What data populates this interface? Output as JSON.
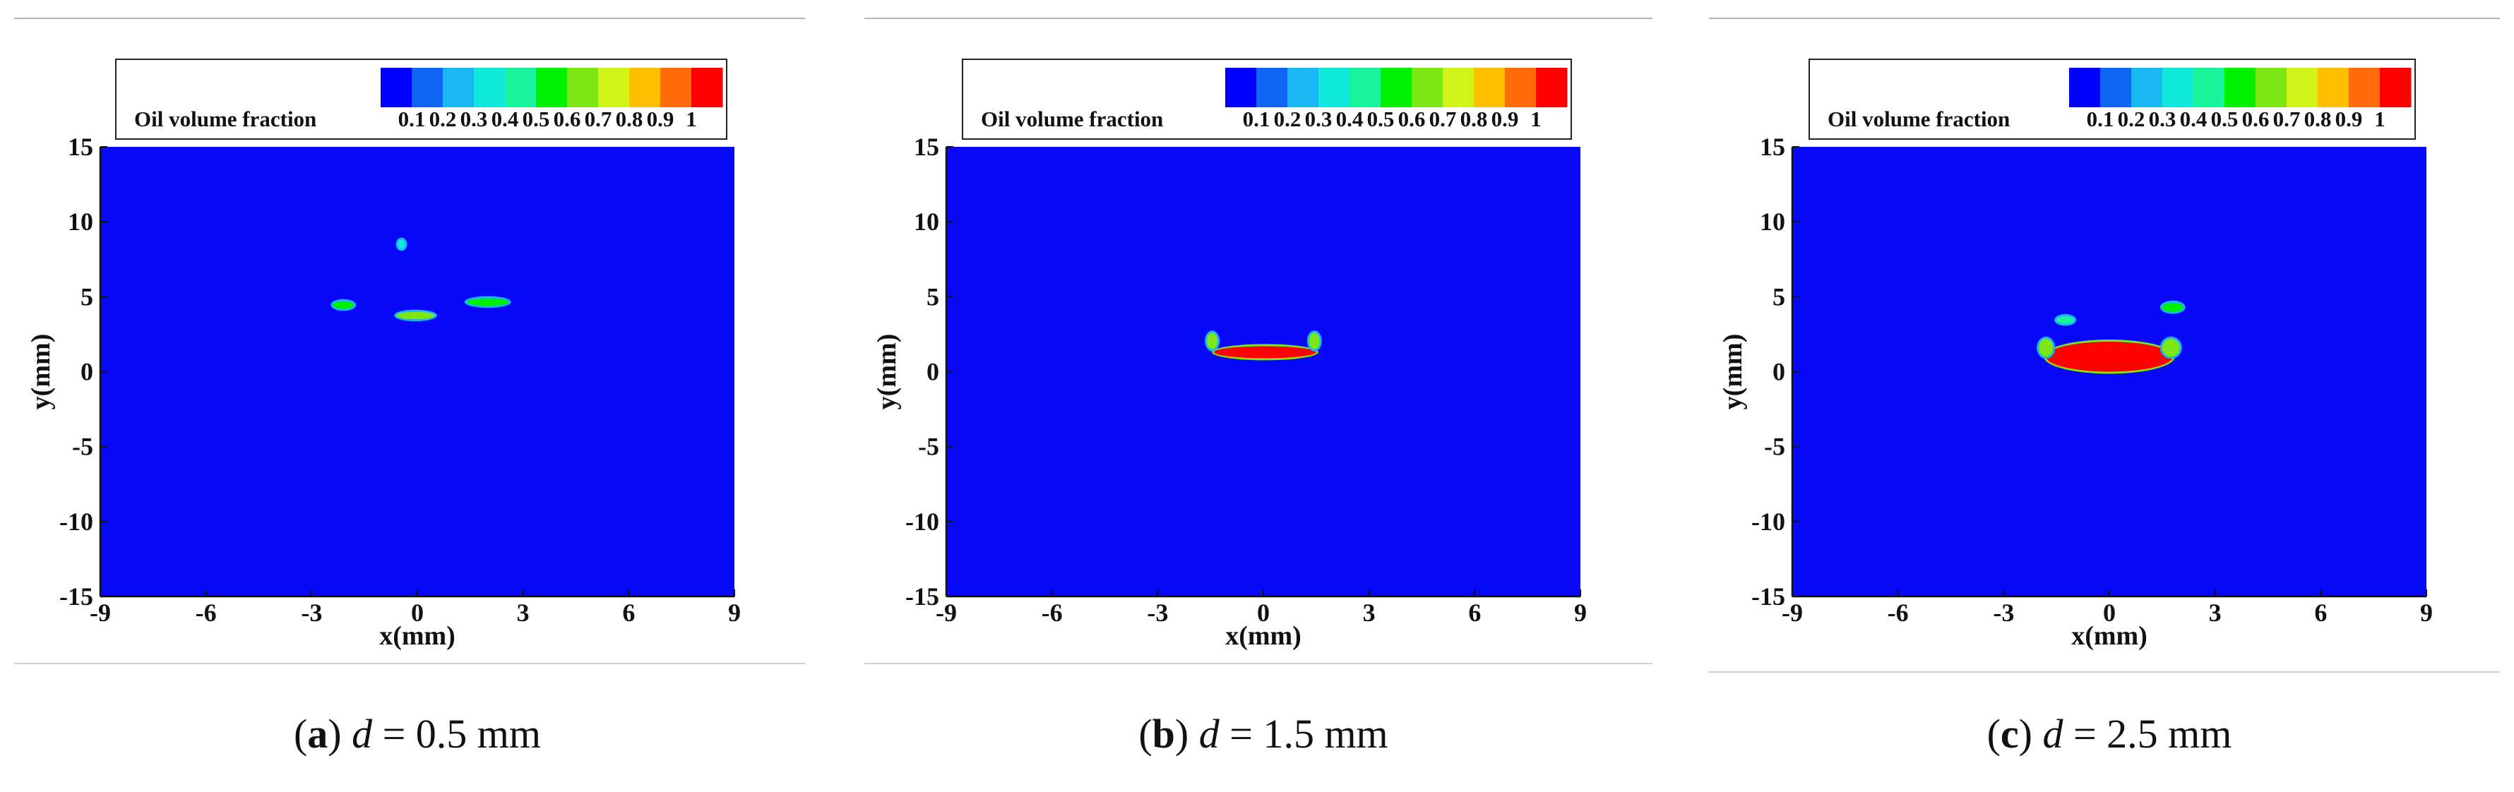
{
  "colormap": {
    "label": "Oil volume fraction",
    "ticks": [
      "0.1",
      "0.2",
      "0.3",
      "0.4",
      "0.5",
      "0.6",
      "0.7",
      "0.8",
      "0.9",
      "1"
    ],
    "colors": [
      "#0000ff",
      "#0f65f4",
      "#19b6f4",
      "#11e9dc",
      "#19f39c",
      "#00ee00",
      "#7ee614",
      "#d2f318",
      "#ffbf00",
      "#ff6a0b",
      "#ff0000"
    ],
    "background_color": "#0808f8"
  },
  "chart_data": [
    {
      "type": "heatmap",
      "panel": "a",
      "caption": {
        "letter": "a",
        "var": "d",
        "rest": " = 0.5 mm"
      },
      "xlabel": "x(mm)",
      "ylabel": "y(mm)",
      "xlim": [
        -9,
        9
      ],
      "ylim": [
        -15,
        15
      ],
      "xticks": [
        -9,
        -6,
        -3,
        0,
        3,
        6,
        9
      ],
      "yticks": [
        15,
        10,
        5,
        0,
        -5,
        -10,
        -15
      ],
      "droplets": [
        {
          "x": [
            -2.4,
            -1.8
          ],
          "y": [
            4.2,
            4.7
          ],
          "fraction": 0.5
        },
        {
          "x": [
            -0.6,
            0.5
          ],
          "y": [
            3.5,
            4.0
          ],
          "fraction": 0.6
        },
        {
          "x": [
            1.4,
            2.6
          ],
          "y": [
            4.4,
            4.9
          ],
          "fraction": 0.5
        },
        {
          "x": [
            -0.55,
            -0.35
          ],
          "y": [
            8.2,
            8.8
          ],
          "fraction": 0.3
        }
      ]
    },
    {
      "type": "heatmap",
      "panel": "b",
      "caption": {
        "letter": "b",
        "var": "d",
        "rest": " = 1.5 mm"
      },
      "xlabel": "x(mm)",
      "ylabel": "y(mm)",
      "xlim": [
        -9,
        9
      ],
      "ylim": [
        -15,
        15
      ],
      "xticks": [
        -9,
        -6,
        -3,
        0,
        3,
        6,
        9
      ],
      "yticks": [
        15,
        10,
        5,
        0,
        -5,
        -10,
        -15
      ],
      "droplets": [
        {
          "x": [
            -1.4,
            1.5
          ],
          "y": [
            0.9,
            1.7
          ],
          "fraction": 1.0
        },
        {
          "x": [
            -1.6,
            -1.3
          ],
          "y": [
            1.5,
            2.6
          ],
          "fraction": 0.6
        },
        {
          "x": [
            1.3,
            1.6
          ],
          "y": [
            1.5,
            2.6
          ],
          "fraction": 0.6
        }
      ]
    },
    {
      "type": "heatmap",
      "panel": "c",
      "caption": {
        "letter": "c",
        "var": "d",
        "rest": " = 2.5 mm"
      },
      "xlabel": "x(mm)",
      "ylabel": "y(mm)",
      "xlim": [
        -9,
        9
      ],
      "ylim": [
        -15,
        15
      ],
      "xticks": [
        -9,
        -6,
        -3,
        0,
        3,
        6,
        9
      ],
      "yticks": [
        15,
        10,
        5,
        0,
        -5,
        -10,
        -15
      ],
      "droplets": [
        {
          "x": [
            -1.8,
            1.8
          ],
          "y": [
            0.0,
            2.0
          ],
          "fraction": 1.0
        },
        {
          "x": [
            -2.0,
            -1.6
          ],
          "y": [
            1.0,
            2.2
          ],
          "fraction": 0.6
        },
        {
          "x": [
            1.5,
            2.0
          ],
          "y": [
            1.0,
            2.2
          ],
          "fraction": 0.6
        },
        {
          "x": [
            1.5,
            2.1
          ],
          "y": [
            4.0,
            4.6
          ],
          "fraction": 0.5
        },
        {
          "x": [
            -1.5,
            -1.0
          ],
          "y": [
            3.2,
            3.7
          ],
          "fraction": 0.4
        }
      ]
    }
  ]
}
